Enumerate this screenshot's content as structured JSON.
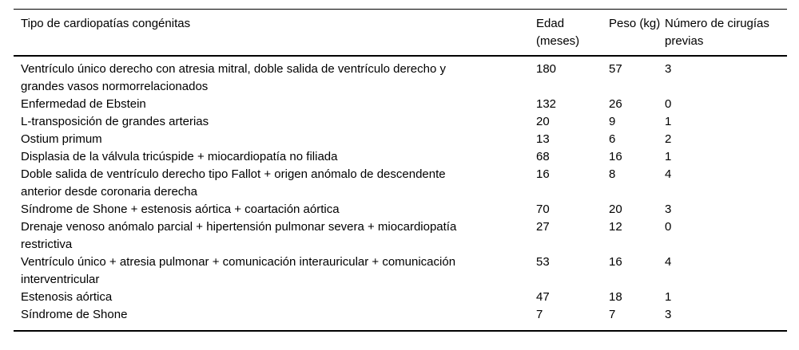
{
  "document": {
    "language": "es",
    "background_color": "#ffffff",
    "text_color": "#000000",
    "rule_color": "#000000"
  },
  "table": {
    "columns": [
      {
        "label": "Tipo de cardiopatías congénitas"
      },
      {
        "label": "Edad (meses)"
      },
      {
        "label": "Peso (kg)"
      },
      {
        "label": "Número de cirugías previas"
      }
    ],
    "rows": [
      {
        "tipo": "Ventrículo único derecho con atresia mitral, doble salida de ventrículo derecho y grandes vasos normorrelacionados",
        "edad": "180",
        "peso": "57",
        "cirugias": "3"
      },
      {
        "tipo": "Enfermedad de Ebstein",
        "edad": "132",
        "peso": "26",
        "cirugias": "0"
      },
      {
        "tipo": "L-transposición de grandes arterias",
        "edad": "20",
        "peso": "9",
        "cirugias": "1"
      },
      {
        "tipo": "Ostium primum",
        "edad": "13",
        "peso": "6",
        "cirugias": "2"
      },
      {
        "tipo": "Displasia de la válvula tricúspide + miocardiopatía no filiada",
        "edad": "68",
        "peso": "16",
        "cirugias": "1"
      },
      {
        "tipo": "Doble salida de ventrículo derecho tipo Fallot + origen anómalo de descendente anterior desde coronaria derecha",
        "edad": "16",
        "peso": "8",
        "cirugias": "4"
      },
      {
        "tipo": "Síndrome de Shone + estenosis aórtica + coartación aórtica",
        "edad": "70",
        "peso": "20",
        "cirugias": "3"
      },
      {
        "tipo": "Drenaje venoso anómalo parcial + hipertensión pulmonar severa + miocardiopatía restrictiva",
        "edad": "27",
        "peso": "12",
        "cirugias": "0"
      },
      {
        "tipo": "Ventrículo único + atresia pulmonar + comunicación interauricular + comunicación interventricular",
        "edad": "53",
        "peso": "16",
        "cirugias": "4"
      },
      {
        "tipo": "Estenosis aórtica",
        "edad": "47",
        "peso": "18",
        "cirugias": "1"
      },
      {
        "tipo": "Síndrome de Shone",
        "edad": "7",
        "peso": "7",
        "cirugias": "3"
      }
    ]
  }
}
